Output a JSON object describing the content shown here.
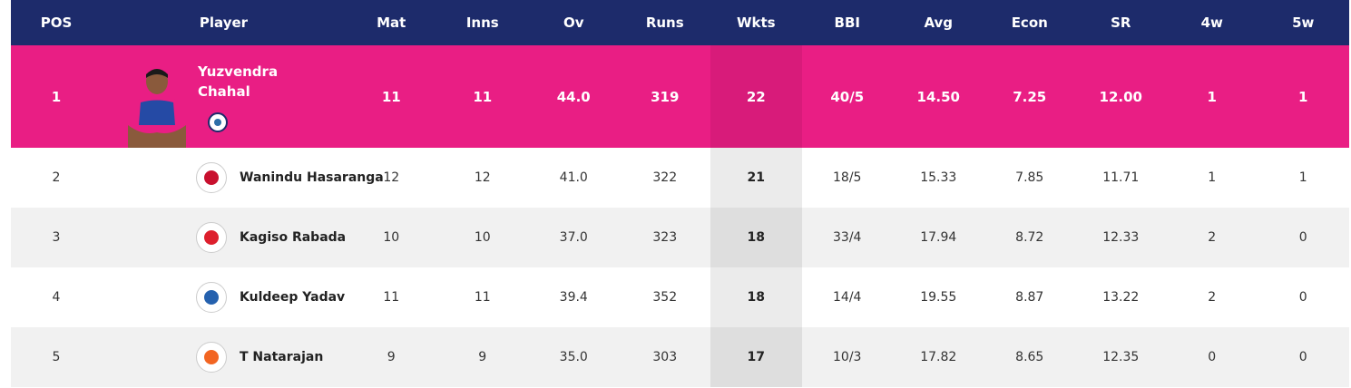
{
  "headers": [
    "POS",
    "Player",
    "Mat",
    "Inns",
    "Ov",
    "Runs",
    "Wkts",
    "BBI",
    "Avg",
    "Econ",
    "SR",
    "4w",
    "5w"
  ],
  "leader": {
    "pos": "1",
    "name_line1": "Yuzvendra",
    "name_line2": "Chahal",
    "mat": "11",
    "inns": "11",
    "ov": "44.0",
    "runs": "319",
    "wkts": "22",
    "bbi": "40/5",
    "avg": "14.50",
    "econ": "7.25",
    "sr": "12.00",
    "w4": "1",
    "w5": "1",
    "badge_icon": "team-badge-icon"
  },
  "rows": [
    {
      "pos": "2",
      "name": "Wanindu Hasaranga",
      "mat": "12",
      "inns": "12",
      "ov": "41.0",
      "runs": "322",
      "wkts": "21",
      "bbi": "18/5",
      "avg": "15.33",
      "econ": "7.85",
      "sr": "11.71",
      "w4": "1",
      "w5": "1",
      "logo_color": "#c8102e",
      "logo_icon": "rcb-logo-icon"
    },
    {
      "pos": "3",
      "name": "Kagiso Rabada",
      "mat": "10",
      "inns": "10",
      "ov": "37.0",
      "runs": "323",
      "wkts": "18",
      "bbi": "33/4",
      "avg": "17.94",
      "econ": "8.72",
      "sr": "12.33",
      "w4": "2",
      "w5": "0",
      "logo_color": "#dd1f2d",
      "logo_icon": "pbks-logo-icon"
    },
    {
      "pos": "4",
      "name": "Kuldeep Yadav",
      "mat": "11",
      "inns": "11",
      "ov": "39.4",
      "runs": "352",
      "wkts": "18",
      "bbi": "14/4",
      "avg": "19.55",
      "econ": "8.87",
      "sr": "13.22",
      "w4": "2",
      "w5": "0",
      "logo_color": "#2561ae",
      "logo_icon": "dc-logo-icon"
    },
    {
      "pos": "5",
      "name": "T Natarajan",
      "mat": "9",
      "inns": "9",
      "ov": "35.0",
      "runs": "303",
      "wkts": "17",
      "bbi": "10/3",
      "avg": "17.82",
      "econ": "8.65",
      "sr": "12.35",
      "w4": "0",
      "w5": "0",
      "logo_color": "#f26522",
      "logo_icon": "srh-logo-icon"
    }
  ],
  "colors": {
    "header": "#1d2b6b",
    "leader": "#e91e84"
  }
}
